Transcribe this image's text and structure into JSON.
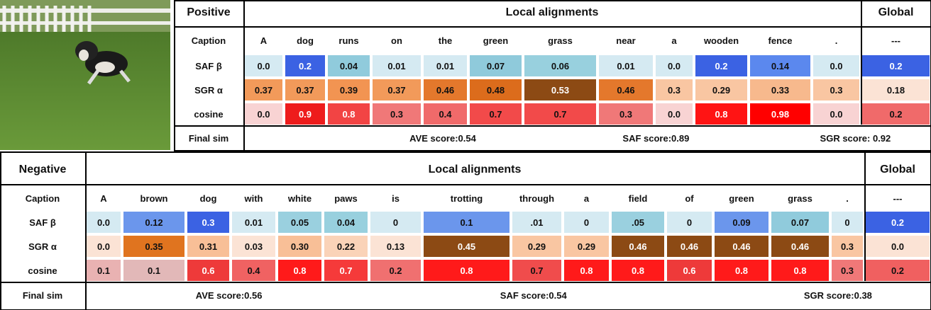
{
  "positive": {
    "header": [
      "Positive",
      "Local alignments",
      "Global"
    ],
    "rows": [
      {
        "label": "Caption",
        "cells": [
          "A",
          "dog",
          "runs",
          "on",
          "the",
          "green",
          "grass",
          "near",
          "a",
          "wooden",
          "fence",
          ".",
          "---"
        ]
      },
      {
        "label": "SAF β",
        "cells": [
          "0.0",
          "0.2",
          "0.04",
          "0.01",
          "0.01",
          "0.07",
          "0.06",
          "0.01",
          "0.0",
          "0.2",
          "0.14",
          "0.0",
          "0.2"
        ],
        "colors": [
          "#d5eaf2",
          "#3b62e3",
          "#90cbdc",
          "#d5eaf2",
          "#d5eaf2",
          "#8fcadb",
          "#98d0de",
          "#d5eaf2",
          "#d5eaf2",
          "#3b62e3",
          "#5b88ee",
          "#d5eaf2",
          "#3b62e3"
        ]
      },
      {
        "label": "SGR α",
        "cells": [
          "0.37",
          "0.37",
          "0.39",
          "0.37",
          "0.46",
          "0.48",
          "0.53",
          "0.46",
          "0.3",
          "0.29",
          "0.33",
          "0.3",
          "0.18"
        ],
        "colors": [
          "#f29a5a",
          "#f29a5a",
          "#f29452",
          "#f29a5a",
          "#e4782c",
          "#dc6c1c",
          "#8c4a14",
          "#e4782c",
          "#f9c6a2",
          "#f9c6a2",
          "#f7b98d",
          "#f9c6a2",
          "#fbe3d5"
        ]
      },
      {
        "label": "cosine",
        "cells": [
          "0.0",
          "0.9",
          "0.8",
          "0.3",
          "0.4",
          "0.7",
          "0.7",
          "0.3",
          "0.0",
          "0.8",
          "0.98",
          "0.0",
          "0.2"
        ],
        "colors": [
          "#f8d3d3",
          "#ee1c1c",
          "#f24444",
          "#f07878",
          "#f06a6a",
          "#f24a4a",
          "#f24a4a",
          "#f07878",
          "#f8d3d3",
          "#ff1414",
          "#ff0000",
          "#f8d3d3",
          "#f06a6a"
        ]
      }
    ],
    "final": {
      "label": "Final sim",
      "scores": [
        "AVE score:0.54",
        "SAF score:0.89",
        "SGR score: 0.92"
      ]
    }
  },
  "negative": {
    "header": [
      "Negative",
      "Local alignments",
      "Global"
    ],
    "rows": [
      {
        "label": "Caption",
        "cells": [
          "A",
          "brown",
          "dog",
          "with",
          "white",
          "paws",
          "is",
          "trotting",
          "through",
          "a",
          "field",
          "of",
          "green",
          "grass",
          ".",
          "---"
        ]
      },
      {
        "label": "SAF β",
        "cells": [
          "0.0",
          "0.12",
          "0.3",
          "0.01",
          "0.05",
          "0.04",
          "0",
          "0.1",
          ".01",
          "0",
          ".05",
          "0",
          "0.09",
          "0.07",
          "0",
          "0.2"
        ],
        "colors": [
          "#d5eaf2",
          "#6b96ec",
          "#3b62e3",
          "#d5eaf2",
          "#9ad0df",
          "#98d0de",
          "#d5eaf2",
          "#6b96ec",
          "#d5eaf2",
          "#d5eaf2",
          "#9ad0df",
          "#d5eaf2",
          "#6b96ec",
          "#90cbdc",
          "#d5eaf2",
          "#3b62e3"
        ]
      },
      {
        "label": "SGR α",
        "cells": [
          "0.0",
          "0.35",
          "0.31",
          "0.03",
          "0.30",
          "0.22",
          "0.13",
          "0.45",
          "0.29",
          "0.29",
          "0.46",
          "0.46",
          "0.46",
          "0.46",
          "0.3",
          "0.0"
        ],
        "colors": [
          "#fbe3d5",
          "#e0741f",
          "#f8bf97",
          "#fbe3d5",
          "#f8bf97",
          "#fad3b8",
          "#fbe3d5",
          "#8c4a14",
          "#f9c6a2",
          "#f9c6a2",
          "#8c4a14",
          "#8c4a14",
          "#8c4a14",
          "#8c4a14",
          "#f9c6a2",
          "#fbe3d5"
        ]
      },
      {
        "label": "cosine",
        "cells": [
          "0.1",
          "0.1",
          "0.6",
          "0.4",
          "0.8",
          "0.7",
          "0.2",
          "0.8",
          "0.7",
          "0.8",
          "0.8",
          "0.6",
          "0.8",
          "0.8",
          "0.3",
          "0.2"
        ],
        "colors": [
          "#e9b2b2",
          "#e2b8b8",
          "#ee3a3a",
          "#f06262",
          "#ff1a1a",
          "#f53a3a",
          "#f07070",
          "#ff1a1a",
          "#f04c4c",
          "#ff1a1a",
          "#ff1a1a",
          "#ee3a3a",
          "#ff1a1a",
          "#ff1a1a",
          "#f07878",
          "#f06060"
        ]
      }
    ],
    "final": {
      "label": "Final sim",
      "scores": [
        "AVE score:0.56",
        "SAF score:0.54",
        "SGR score:0.38"
      ]
    }
  }
}
